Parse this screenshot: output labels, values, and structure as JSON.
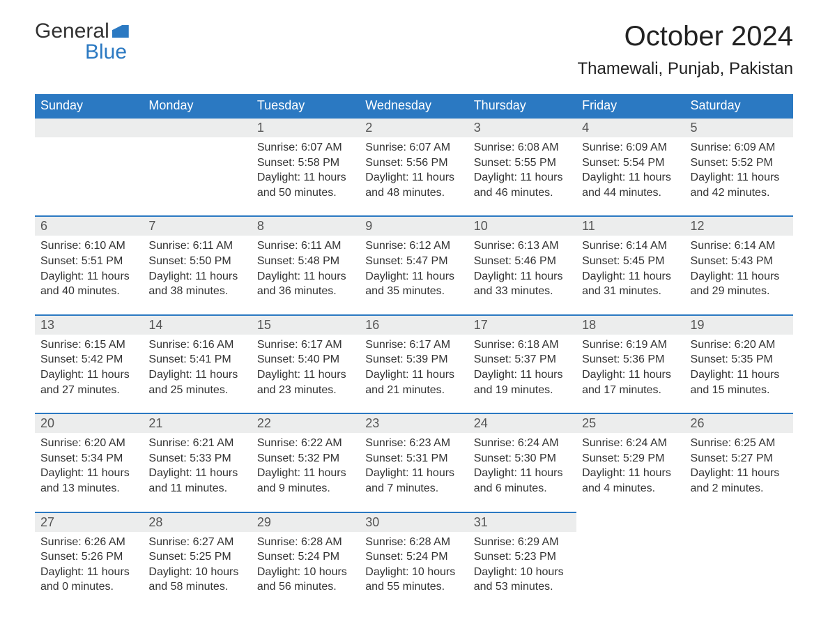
{
  "logo": {
    "word1": "General",
    "word2": "Blue"
  },
  "title": "October 2024",
  "location": "Thamewali, Punjab, Pakistan",
  "colors": {
    "header_bg": "#2b79c2",
    "header_text": "#ffffff",
    "daynum_bg": "#eceded",
    "row_divider": "#2b79c2",
    "body_text": "#333333",
    "page_bg": "#ffffff"
  },
  "day_headers": [
    "Sunday",
    "Monday",
    "Tuesday",
    "Wednesday",
    "Thursday",
    "Friday",
    "Saturday"
  ],
  "weeks": [
    [
      null,
      null,
      {
        "n": "1",
        "sunrise": "6:07 AM",
        "sunset": "5:58 PM",
        "daylight": "11 hours and 50 minutes."
      },
      {
        "n": "2",
        "sunrise": "6:07 AM",
        "sunset": "5:56 PM",
        "daylight": "11 hours and 48 minutes."
      },
      {
        "n": "3",
        "sunrise": "6:08 AM",
        "sunset": "5:55 PM",
        "daylight": "11 hours and 46 minutes."
      },
      {
        "n": "4",
        "sunrise": "6:09 AM",
        "sunset": "5:54 PM",
        "daylight": "11 hours and 44 minutes."
      },
      {
        "n": "5",
        "sunrise": "6:09 AM",
        "sunset": "5:52 PM",
        "daylight": "11 hours and 42 minutes."
      }
    ],
    [
      {
        "n": "6",
        "sunrise": "6:10 AM",
        "sunset": "5:51 PM",
        "daylight": "11 hours and 40 minutes."
      },
      {
        "n": "7",
        "sunrise": "6:11 AM",
        "sunset": "5:50 PM",
        "daylight": "11 hours and 38 minutes."
      },
      {
        "n": "8",
        "sunrise": "6:11 AM",
        "sunset": "5:48 PM",
        "daylight": "11 hours and 36 minutes."
      },
      {
        "n": "9",
        "sunrise": "6:12 AM",
        "sunset": "5:47 PM",
        "daylight": "11 hours and 35 minutes."
      },
      {
        "n": "10",
        "sunrise": "6:13 AM",
        "sunset": "5:46 PM",
        "daylight": "11 hours and 33 minutes."
      },
      {
        "n": "11",
        "sunrise": "6:14 AM",
        "sunset": "5:45 PM",
        "daylight": "11 hours and 31 minutes."
      },
      {
        "n": "12",
        "sunrise": "6:14 AM",
        "sunset": "5:43 PM",
        "daylight": "11 hours and 29 minutes."
      }
    ],
    [
      {
        "n": "13",
        "sunrise": "6:15 AM",
        "sunset": "5:42 PM",
        "daylight": "11 hours and 27 minutes."
      },
      {
        "n": "14",
        "sunrise": "6:16 AM",
        "sunset": "5:41 PM",
        "daylight": "11 hours and 25 minutes."
      },
      {
        "n": "15",
        "sunrise": "6:17 AM",
        "sunset": "5:40 PM",
        "daylight": "11 hours and 23 minutes."
      },
      {
        "n": "16",
        "sunrise": "6:17 AM",
        "sunset": "5:39 PM",
        "daylight": "11 hours and 21 minutes."
      },
      {
        "n": "17",
        "sunrise": "6:18 AM",
        "sunset": "5:37 PM",
        "daylight": "11 hours and 19 minutes."
      },
      {
        "n": "18",
        "sunrise": "6:19 AM",
        "sunset": "5:36 PM",
        "daylight": "11 hours and 17 minutes."
      },
      {
        "n": "19",
        "sunrise": "6:20 AM",
        "sunset": "5:35 PM",
        "daylight": "11 hours and 15 minutes."
      }
    ],
    [
      {
        "n": "20",
        "sunrise": "6:20 AM",
        "sunset": "5:34 PM",
        "daylight": "11 hours and 13 minutes."
      },
      {
        "n": "21",
        "sunrise": "6:21 AM",
        "sunset": "5:33 PM",
        "daylight": "11 hours and 11 minutes."
      },
      {
        "n": "22",
        "sunrise": "6:22 AM",
        "sunset": "5:32 PM",
        "daylight": "11 hours and 9 minutes."
      },
      {
        "n": "23",
        "sunrise": "6:23 AM",
        "sunset": "5:31 PM",
        "daylight": "11 hours and 7 minutes."
      },
      {
        "n": "24",
        "sunrise": "6:24 AM",
        "sunset": "5:30 PM",
        "daylight": "11 hours and 6 minutes."
      },
      {
        "n": "25",
        "sunrise": "6:24 AM",
        "sunset": "5:29 PM",
        "daylight": "11 hours and 4 minutes."
      },
      {
        "n": "26",
        "sunrise": "6:25 AM",
        "sunset": "5:27 PM",
        "daylight": "11 hours and 2 minutes."
      }
    ],
    [
      {
        "n": "27",
        "sunrise": "6:26 AM",
        "sunset": "5:26 PM",
        "daylight": "11 hours and 0 minutes."
      },
      {
        "n": "28",
        "sunrise": "6:27 AM",
        "sunset": "5:25 PM",
        "daylight": "10 hours and 58 minutes."
      },
      {
        "n": "29",
        "sunrise": "6:28 AM",
        "sunset": "5:24 PM",
        "daylight": "10 hours and 56 minutes."
      },
      {
        "n": "30",
        "sunrise": "6:28 AM",
        "sunset": "5:24 PM",
        "daylight": "10 hours and 55 minutes."
      },
      {
        "n": "31",
        "sunrise": "6:29 AM",
        "sunset": "5:23 PM",
        "daylight": "10 hours and 53 minutes."
      },
      null,
      null
    ]
  ],
  "labels": {
    "sunrise": "Sunrise: ",
    "sunset": "Sunset: ",
    "daylight": "Daylight: "
  }
}
